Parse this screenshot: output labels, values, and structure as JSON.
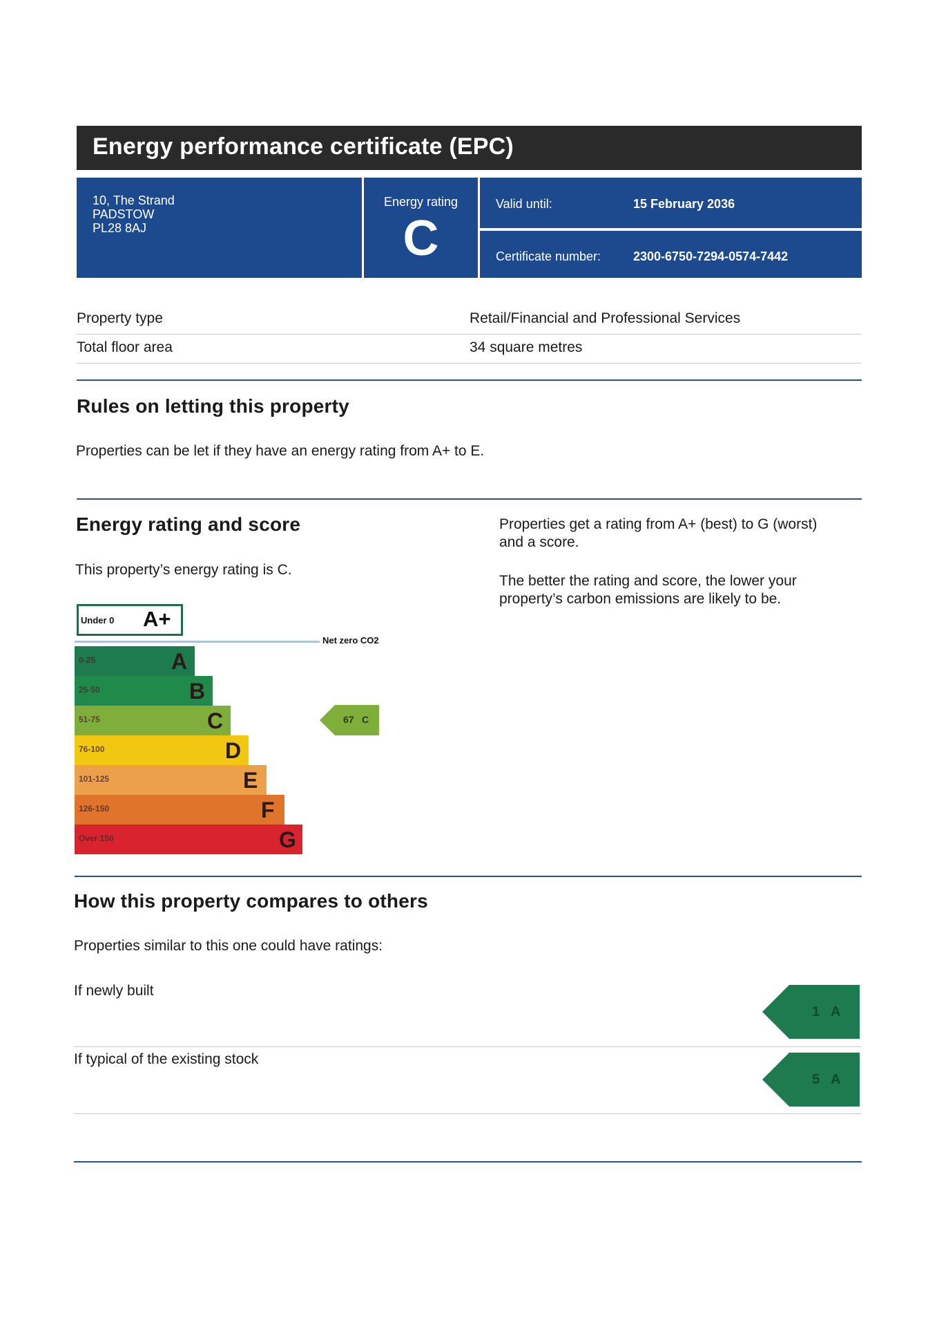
{
  "header": {
    "title": "Energy performance certificate (EPC)",
    "address": [
      "10, The Strand",
      "PADSTOW",
      "PL28 8AJ"
    ],
    "energy_rating_label": "Energy rating",
    "energy_rating": "C",
    "valid_until_label": "Valid until:",
    "valid_until": "15 February 2036",
    "certificate_number_label": "Certificate number:",
    "certificate_number": "2300-6750-7294-0574-7442"
  },
  "property": {
    "rows": [
      {
        "label": "Property type",
        "value": "Retail/Financial and Professional Services"
      },
      {
        "label": "Total floor area",
        "value": "34 square metres"
      }
    ]
  },
  "letting": {
    "heading": "Rules on letting this property",
    "text": "Properties can be let if they have an energy rating from A+ to E."
  },
  "rating_section": {
    "heading": "Energy rating and score",
    "text": "This property’s energy rating is C.",
    "side_text_1": [
      "Properties get a rating from A+ (best) to G (worst)",
      "and a score."
    ],
    "side_text_2": [
      "The better the rating and score, the lower your",
      "property’s carbon emissions are likely to be."
    ]
  },
  "scale": {
    "aplus_range": "Under 0",
    "aplus_letter": "A+",
    "net_zero_label": "Net zero CO2",
    "bands": [
      {
        "range": "0-25",
        "letter": "A",
        "color": "#1e7a4f"
      },
      {
        "range": "25-50",
        "letter": "B",
        "color": "#1f8a4a"
      },
      {
        "range": "51-75",
        "letter": "C",
        "color": "#7fae3a"
      },
      {
        "range": "76-100",
        "letter": "D",
        "color": "#f1c711"
      },
      {
        "range": "101-125",
        "letter": "E",
        "color": "#eca04a"
      },
      {
        "range": "126-150",
        "letter": "F",
        "color": "#e0742a"
      },
      {
        "range": "Over 150",
        "letter": "G",
        "color": "#d9232f"
      }
    ],
    "current": {
      "score": 67,
      "letter": "C",
      "color": "#7fae3a"
    }
  },
  "compare": {
    "heading": "How this property compares to others",
    "text": "Properties similar to this one could have ratings:",
    "rows": [
      {
        "label": "If newly built",
        "score": 1,
        "letter": "A",
        "color": "#1e7a4f"
      },
      {
        "label": "If typical of the existing stock",
        "score": 5,
        "letter": "A",
        "color": "#1e7a4f"
      }
    ]
  }
}
